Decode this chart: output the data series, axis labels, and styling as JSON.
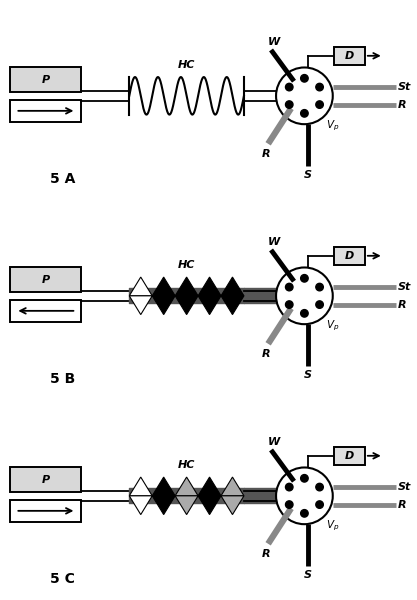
{
  "bg": "#ffffff",
  "pump_fill": "#d8d8d8",
  "pump_border": "#000000",
  "det_fill": "#e0e0e0",
  "valve_fill": "#f0f0f0",
  "gray_line": "#888888",
  "dark_line": "#000000",
  "dark_gray_tube": "#555555",
  "coil_A_color": "#111111",
  "panel_labels": [
    "5 A",
    "5 B",
    "5 C"
  ],
  "coil_B_colors": [
    "white",
    "black",
    "black",
    "black",
    "black"
  ],
  "coil_C_colors_top": [
    "white",
    "black",
    "#888888",
    "black",
    "#888888"
  ],
  "coil_C_colors_bot": [
    "white",
    "black",
    "#888888",
    "black",
    "#888888"
  ]
}
